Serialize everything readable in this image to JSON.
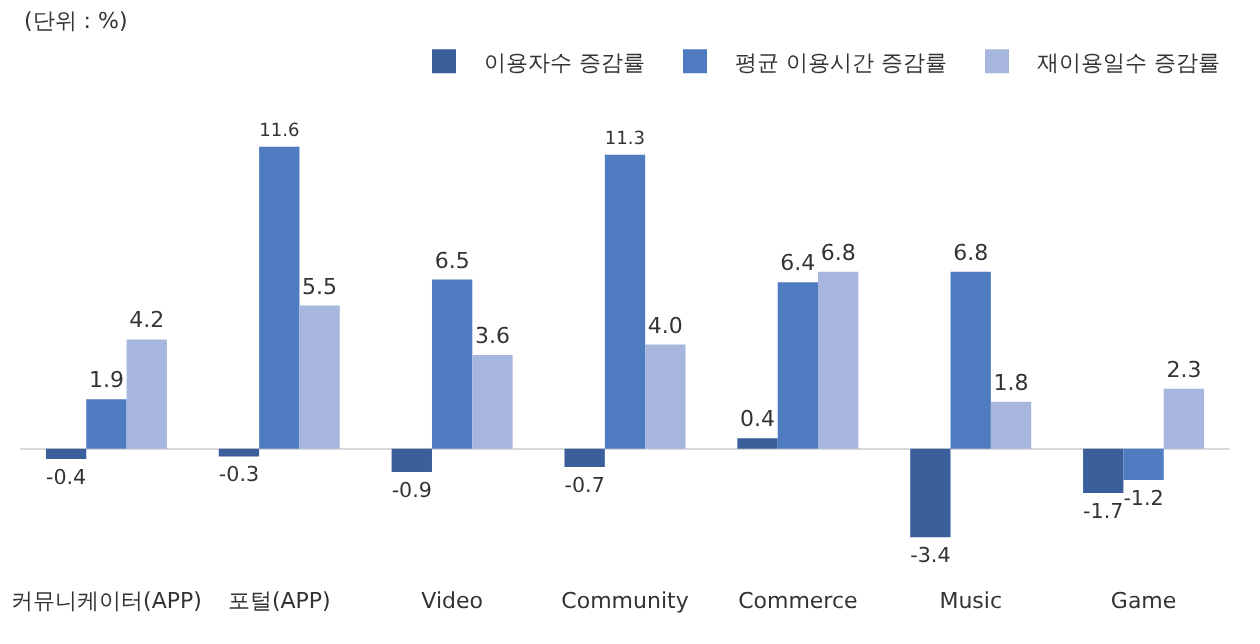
{
  "chart_data": {
    "type": "bar",
    "categories": [
      "커뮤니케이터(APP)",
      "포털(APP)",
      "Video",
      "Community",
      "Commerce",
      "Music",
      "Game"
    ],
    "series": [
      {
        "name": "이용자수 증감률",
        "color": "#3a5f9a",
        "values": [
          -0.4,
          -0.3,
          -0.9,
          -0.7,
          0.4,
          -3.4,
          -1.7
        ],
        "value_labels": [
          "-0.4",
          "-0.3",
          "-0.9",
          "-0.7",
          "0.4",
          "-3.4",
          "-1.7"
        ]
      },
      {
        "name": "평균 이용시간 증감률",
        "color": "#4f7cc0",
        "values": [
          1.9,
          11.6,
          6.5,
          11.3,
          6.4,
          6.8,
          -1.2
        ],
        "value_labels": [
          "1.9",
          "11.6",
          "6.5",
          "11.3",
          "6.4",
          "6.8",
          "-1.2"
        ]
      },
      {
        "name": "재이용일수 증감률",
        "color": "#a6b6dc",
        "values": [
          4.2,
          5.5,
          3.6,
          4.0,
          6.8,
          1.8,
          2.3
        ],
        "value_labels": [
          "4.2",
          "5.5",
          "3.6",
          "4.0",
          "6.8",
          "1.8",
          "2.3"
        ]
      }
    ],
    "legend": "top right",
    "grid": false,
    "annotations": [
      "(단위 : %)"
    ]
  }
}
